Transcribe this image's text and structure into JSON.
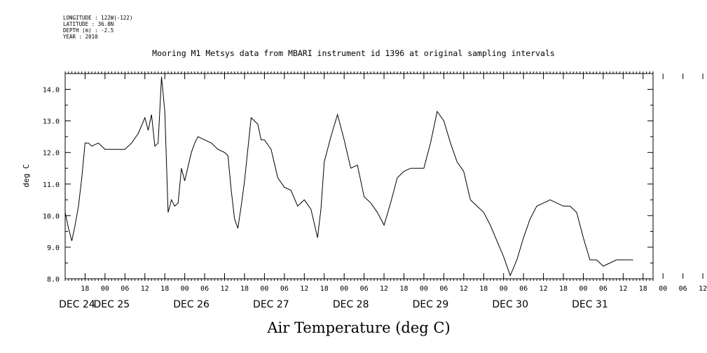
{
  "header": {
    "longitude": "LONGITUDE : 122W(-122)",
    "latitude": "LATITUDE : 36.8N",
    "depth": "DEPTH (m) : -2.5",
    "year": "YEAR : 2010"
  },
  "colors": {
    "line": "#000000",
    "background": "#ffffff"
  },
  "chart_data": {
    "type": "line",
    "title": "Mooring M1 Metsys data from MBARI instrument id 1396 at original sampling intervals",
    "xlabel": "Air Temperature (deg C)",
    "ylabel": "deg C",
    "ylim": [
      8.0,
      14.5
    ],
    "xlim": [
      "2010-12-24T12:00",
      "2010-12-31T21:00"
    ],
    "y_ticks": [
      "8.0",
      "9.0",
      "10.0",
      "11.0",
      "12.0",
      "13.0",
      "14.0"
    ],
    "x_tick_labels": [
      "18",
      "00",
      "06",
      "12",
      "18",
      "00",
      "06",
      "12",
      "18",
      "00",
      "06",
      "12",
      "18",
      "00",
      "06",
      "12",
      "18",
      "00",
      "06",
      "12",
      "18",
      "00",
      "06",
      "12",
      "18",
      "00",
      "06",
      "12",
      "18",
      "00",
      "06",
      "12"
    ],
    "day_labels": [
      "DEC 24",
      "DEC 25",
      "DEC 26",
      "DEC 27",
      "DEC 28",
      "DEC 29",
      "DEC 30",
      "DEC 31"
    ],
    "grid": false,
    "series": [
      {
        "x": [
          "2010-12-24T12:00",
          "2010-12-24T13:00",
          "2010-12-24T14:00",
          "2010-12-24T15:00",
          "2010-12-24T16:00",
          "2010-12-24T17:00",
          "2010-12-24T18:00",
          "2010-12-24T19:00",
          "2010-12-24T20:00",
          "2010-12-24T22:00",
          "2010-12-25T00:00",
          "2010-12-25T02:00",
          "2010-12-25T04:00",
          "2010-12-25T06:00",
          "2010-12-25T08:00",
          "2010-12-25T10:00",
          "2010-12-25T12:00",
          "2010-12-25T13:00",
          "2010-12-25T14:00",
          "2010-12-25T15:00",
          "2010-12-25T16:00",
          "2010-12-25T17:00",
          "2010-12-25T18:00",
          "2010-12-25T19:00",
          "2010-12-25T20:00",
          "2010-12-25T21:00",
          "2010-12-25T22:00",
          "2010-12-25T23:00",
          "2010-12-26T00:00",
          "2010-12-26T02:00",
          "2010-12-26T03:00",
          "2010-12-26T04:00",
          "2010-12-26T06:00",
          "2010-12-26T08:00",
          "2010-12-26T10:00",
          "2010-12-26T12:00",
          "2010-12-26T13:00",
          "2010-12-26T14:00",
          "2010-12-26T15:00",
          "2010-12-26T16:00",
          "2010-12-26T17:00",
          "2010-12-26T18:00",
          "2010-12-26T20:00",
          "2010-12-26T22:00",
          "2010-12-26T23:00",
          "2010-12-27T00:00",
          "2010-12-27T02:00",
          "2010-12-27T04:00",
          "2010-12-27T06:00",
          "2010-12-27T08:00",
          "2010-12-27T10:00",
          "2010-12-27T12:00",
          "2010-12-27T14:00",
          "2010-12-27T16:00",
          "2010-12-27T17:00",
          "2010-12-27T18:00",
          "2010-12-27T20:00",
          "2010-12-27T22:00",
          "2010-12-28T00:00",
          "2010-12-28T02:00",
          "2010-12-28T04:00",
          "2010-12-28T06:00",
          "2010-12-28T08:00",
          "2010-12-28T10:00",
          "2010-12-28T12:00",
          "2010-12-28T14:00",
          "2010-12-28T16:00",
          "2010-12-28T18:00",
          "2010-12-28T20:00",
          "2010-12-28T22:00",
          "2010-12-29T00:00",
          "2010-12-29T02:00",
          "2010-12-29T04:00",
          "2010-12-29T06:00",
          "2010-12-29T08:00",
          "2010-12-29T10:00",
          "2010-12-29T12:00",
          "2010-12-29T14:00",
          "2010-12-29T16:00",
          "2010-12-29T18:00",
          "2010-12-29T20:00",
          "2010-12-29T22:00",
          "2010-12-30T00:00",
          "2010-12-30T02:00",
          "2010-12-30T04:00",
          "2010-12-30T06:00",
          "2010-12-30T08:00",
          "2010-12-30T10:00",
          "2010-12-30T12:00",
          "2010-12-30T14:00",
          "2010-12-30T16:00",
          "2010-12-30T18:00",
          "2010-12-30T20:00",
          "2010-12-30T22:00",
          "2010-12-31T00:00",
          "2010-12-31T02:00",
          "2010-12-31T04:00",
          "2010-12-31T06:00",
          "2010-12-31T08:00",
          "2010-12-31T10:00",
          "2010-12-31T12:00",
          "2010-12-31T14:00",
          "2010-12-31T15:00"
        ],
        "y": [
          10.1,
          9.6,
          9.2,
          9.7,
          10.3,
          11.2,
          12.3,
          12.3,
          12.2,
          12.3,
          12.1,
          12.1,
          12.1,
          12.1,
          12.3,
          12.6,
          13.1,
          12.7,
          13.2,
          12.2,
          12.3,
          14.4,
          13.3,
          10.1,
          10.5,
          10.3,
          10.4,
          11.5,
          11.1,
          12.0,
          12.3,
          12.5,
          12.4,
          12.3,
          12.1,
          12.0,
          11.9,
          10.8,
          9.9,
          9.6,
          10.3,
          11.1,
          13.1,
          12.9,
          12.4,
          12.4,
          12.1,
          11.2,
          10.9,
          10.8,
          10.3,
          10.5,
          10.2,
          9.3,
          10.2,
          11.7,
          12.5,
          13.2,
          12.4,
          11.5,
          11.6,
          10.6,
          10.4,
          10.1,
          9.7,
          10.4,
          11.2,
          11.4,
          11.5,
          11.5,
          11.5,
          12.3,
          13.3,
          13.0,
          12.3,
          11.7,
          11.4,
          10.5,
          10.3,
          10.1,
          9.7,
          9.2,
          8.7,
          8.1,
          8.6,
          9.3,
          9.9,
          10.3,
          10.4,
          10.5,
          10.4,
          10.3,
          10.3,
          10.1,
          9.3,
          8.6,
          8.6,
          8.4,
          8.5,
          8.6,
          8.6,
          8.6,
          8.6
        ]
      }
    ]
  },
  "plot_text": {
    "title_text": "Mooring M1 Metsys data from MBARI instrument id 1396 at original sampling intervals"
  }
}
